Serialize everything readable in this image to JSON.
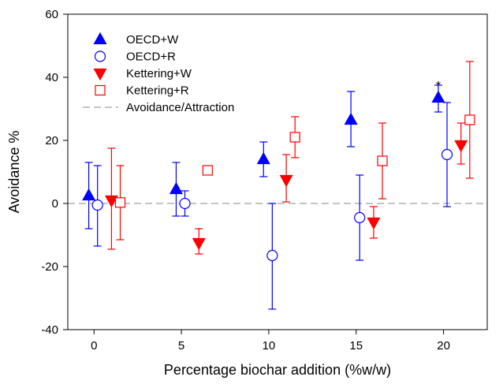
{
  "chart_data": {
    "type": "scatter",
    "title": "",
    "xlabel": "Percentage biochar addition (%w/w)",
    "ylabel": "Avoidance %",
    "xlim": [
      -1.5,
      22.5
    ],
    "ylim": [
      -40,
      60
    ],
    "xticks": [
      0,
      5,
      10,
      15,
      20
    ],
    "yticks": [
      -40,
      -20,
      0,
      20,
      40,
      60
    ],
    "grid": false,
    "legend_position": "top-left",
    "reference_line": {
      "name": "Avoidance/Attraction",
      "y": 0,
      "style": "dashed",
      "color": "#a0a0a0"
    },
    "series": [
      {
        "name": "OECD+W",
        "marker": "triangle-up",
        "filled": true,
        "color": "#0000ff",
        "points": [
          {
            "x": -0.3,
            "y": 2.5,
            "lo": -8,
            "hi": 13
          },
          {
            "x": 4.7,
            "y": 4.5,
            "lo": -4,
            "hi": 13
          },
          {
            "x": 9.7,
            "y": 14,
            "lo": 8.5,
            "hi": 19.5
          },
          {
            "x": 14.7,
            "y": 26.5,
            "lo": 18,
            "hi": 35.5
          },
          {
            "x": 19.7,
            "y": 33.5,
            "lo": 29,
            "hi": 37.5
          }
        ]
      },
      {
        "name": "OECD+R",
        "marker": "circle",
        "filled": false,
        "color": "#0000ff",
        "points": [
          {
            "x": 0.2,
            "y": -0.5,
            "lo": -13.5,
            "hi": 12
          },
          {
            "x": 5.2,
            "y": 0,
            "lo": -4,
            "hi": 4
          },
          {
            "x": 10.2,
            "y": -16.5,
            "lo": -33.5,
            "hi": 0
          },
          {
            "x": 15.2,
            "y": -4.5,
            "lo": -18,
            "hi": 9
          },
          {
            "x": 20.2,
            "y": 15.5,
            "lo": -1,
            "hi": 32
          }
        ]
      },
      {
        "name": "Kettering+W",
        "marker": "triangle-down",
        "filled": true,
        "color": "#ff0000",
        "points": [
          {
            "x": 1.0,
            "y": 1.0,
            "lo": -14.5,
            "hi": 17.5
          },
          {
            "x": 6.0,
            "y": -12.5,
            "lo": -16,
            "hi": -8
          },
          {
            "x": 11.0,
            "y": 7.5,
            "lo": 0.5,
            "hi": 15.5
          },
          {
            "x": 16.0,
            "y": -6,
            "lo": -11,
            "hi": -1
          },
          {
            "x": 21.0,
            "y": 18.5,
            "lo": 12.5,
            "hi": 25.5
          }
        ]
      },
      {
        "name": "Kettering+R",
        "marker": "square",
        "filled": false,
        "color": "#ff0000",
        "points": [
          {
            "x": 1.5,
            "y": 0.3,
            "lo": -11.5,
            "hi": 12
          },
          {
            "x": 6.5,
            "y": 10.5,
            "lo": 10,
            "hi": 11
          },
          {
            "x": 11.5,
            "y": 21,
            "lo": 14.5,
            "hi": 27.5
          },
          {
            "x": 16.5,
            "y": 13.5,
            "lo": 1.5,
            "hi": 25.5
          },
          {
            "x": 21.5,
            "y": 26.5,
            "lo": 8,
            "hi": 45
          }
        ]
      }
    ],
    "annotations": [
      {
        "text": "*",
        "x": 19.7,
        "y": 38.5
      }
    ]
  }
}
